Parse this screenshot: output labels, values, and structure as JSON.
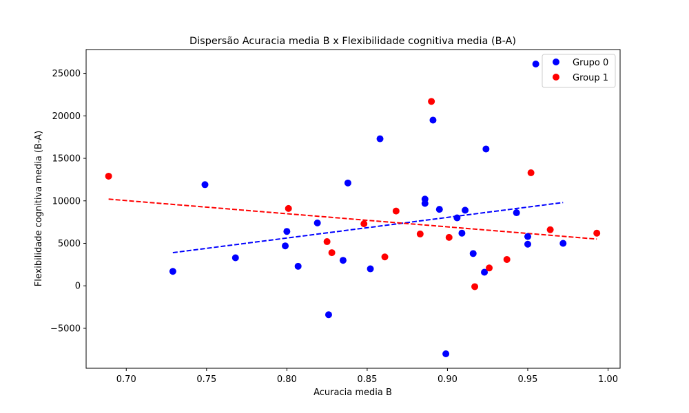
{
  "chart_data": {
    "type": "scatter",
    "title": "Dispersão Acuracia media B x Flexibilidade cognitiva media (B-A)",
    "xlabel": "Acuracia media B",
    "ylabel": "Flexibilidade cognitiva media (B-A)",
    "xlim": [
      0.675,
      1.0075
    ],
    "ylim": [
      -9700,
      27800
    ],
    "xticks": [
      0.7,
      0.75,
      0.8,
      0.85,
      0.9,
      0.95,
      1.0
    ],
    "xtick_labels": [
      "0.70",
      "0.75",
      "0.80",
      "0.85",
      "0.90",
      "0.95",
      "1.00"
    ],
    "yticks": [
      -5000,
      0,
      5000,
      10000,
      15000,
      20000,
      25000
    ],
    "ytick_labels": [
      "−5000",
      "0",
      "5000",
      "10000",
      "15000",
      "20000",
      "25000"
    ],
    "grid": false,
    "legend_position": "top-right",
    "series": [
      {
        "name": "Grupo 0",
        "color": "#0000ff",
        "points": [
          [
            0.729,
            1700
          ],
          [
            0.749,
            11900
          ],
          [
            0.768,
            3300
          ],
          [
            0.799,
            4700
          ],
          [
            0.8,
            6400
          ],
          [
            0.807,
            2300
          ],
          [
            0.819,
            7400
          ],
          [
            0.826,
            -3400
          ],
          [
            0.835,
            3000
          ],
          [
            0.838,
            12100
          ],
          [
            0.852,
            2000
          ],
          [
            0.858,
            17300
          ],
          [
            0.886,
            10200
          ],
          [
            0.886,
            9700
          ],
          [
            0.891,
            19500
          ],
          [
            0.895,
            9000
          ],
          [
            0.899,
            -8000
          ],
          [
            0.906,
            8000
          ],
          [
            0.909,
            6200
          ],
          [
            0.911,
            8900
          ],
          [
            0.916,
            3800
          ],
          [
            0.923,
            1600
          ],
          [
            0.924,
            16100
          ],
          [
            0.943,
            8600
          ],
          [
            0.95,
            5800
          ],
          [
            0.95,
            4900
          ],
          [
            0.955,
            26100
          ],
          [
            0.972,
            5000
          ]
        ],
        "trend": {
          "x": [
            0.729,
            0.972
          ],
          "y": [
            3900,
            9800
          ]
        }
      },
      {
        "name": "Group 1",
        "color": "#ff0000",
        "points": [
          [
            0.689,
            12900
          ],
          [
            0.801,
            9100
          ],
          [
            0.825,
            5200
          ],
          [
            0.828,
            3900
          ],
          [
            0.848,
            7300
          ],
          [
            0.861,
            3400
          ],
          [
            0.868,
            8800
          ],
          [
            0.883,
            6100
          ],
          [
            0.89,
            21700
          ],
          [
            0.901,
            5700
          ],
          [
            0.917,
            -100
          ],
          [
            0.926,
            2100
          ],
          [
            0.937,
            3100
          ],
          [
            0.952,
            13300
          ],
          [
            0.964,
            6600
          ],
          [
            0.993,
            6200
          ]
        ],
        "trend": {
          "x": [
            0.689,
            0.993
          ],
          "y": [
            10200,
            5500
          ]
        }
      }
    ]
  }
}
